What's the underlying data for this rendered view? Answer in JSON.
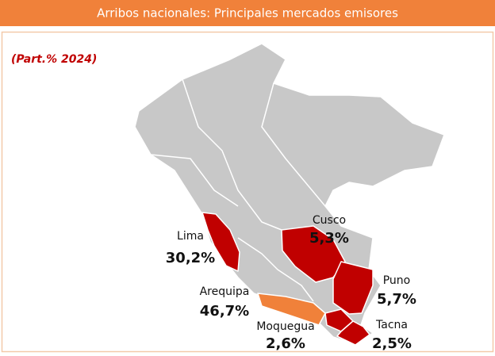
{
  "header": {
    "title": "Arribos nacionales: Principales mercados emisores"
  },
  "note": "(Part.% 2024)",
  "regions": [
    {
      "name": "Lima",
      "share": "30,2%"
    },
    {
      "name": "Cusco",
      "share": "5,3%"
    },
    {
      "name": "Puno",
      "share": "5,7%"
    },
    {
      "name": "Arequipa",
      "share": "46,7%"
    },
    {
      "name": "Moquegua",
      "share": "2,6%"
    },
    {
      "name": "Tacna",
      "share": "2,5%"
    }
  ]
}
